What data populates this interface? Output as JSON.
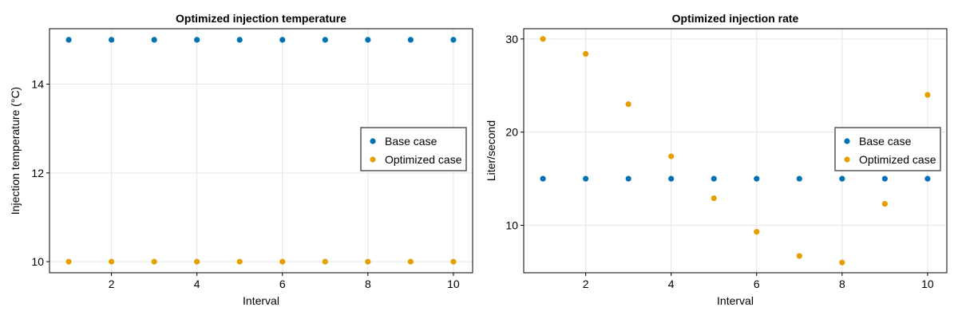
{
  "chart_data": [
    {
      "type": "scatter",
      "title": "Optimized injection temperature",
      "xlabel": "Interval",
      "ylabel": "Injection temperature (°C)",
      "xlim": [
        0.55,
        10.45
      ],
      "ylim": [
        9.75,
        15.25
      ],
      "xticks": [
        2,
        4,
        6,
        8,
        10
      ],
      "yticks": [
        10,
        12,
        14
      ],
      "grid": true,
      "legend_position": "right-center",
      "series": [
        {
          "name": "Base case",
          "color": "#0072B2",
          "x": [
            1,
            2,
            3,
            4,
            5,
            6,
            7,
            8,
            9,
            10
          ],
          "y": [
            15,
            15,
            15,
            15,
            15,
            15,
            15,
            15,
            15,
            15
          ]
        },
        {
          "name": "Optimized case",
          "color": "#E69F00",
          "x": [
            1,
            2,
            3,
            4,
            5,
            6,
            7,
            8,
            9,
            10
          ],
          "y": [
            10,
            10,
            10,
            10,
            10,
            10,
            10,
            10,
            10,
            10
          ]
        }
      ]
    },
    {
      "type": "scatter",
      "title": "Optimized injection rate",
      "xlabel": "Interval",
      "ylabel": "Liter/second",
      "xlim": [
        0.55,
        10.45
      ],
      "ylim": [
        4.9,
        31.1
      ],
      "xticks": [
        2,
        4,
        6,
        8,
        10
      ],
      "yticks": [
        10,
        20,
        30
      ],
      "grid": true,
      "legend_position": "right-center",
      "series": [
        {
          "name": "Base case",
          "color": "#0072B2",
          "x": [
            1,
            2,
            3,
            4,
            5,
            6,
            7,
            8,
            9,
            10
          ],
          "y": [
            15,
            15,
            15,
            15,
            15,
            15,
            15,
            15,
            15,
            15
          ]
        },
        {
          "name": "Optimized case",
          "color": "#E69F00",
          "x": [
            1,
            2,
            3,
            4,
            5,
            6,
            7,
            8,
            9,
            10
          ],
          "y": [
            30,
            28.4,
            23,
            17.4,
            12.9,
            9.3,
            6.7,
            6,
            12.3,
            24
          ]
        }
      ]
    }
  ]
}
